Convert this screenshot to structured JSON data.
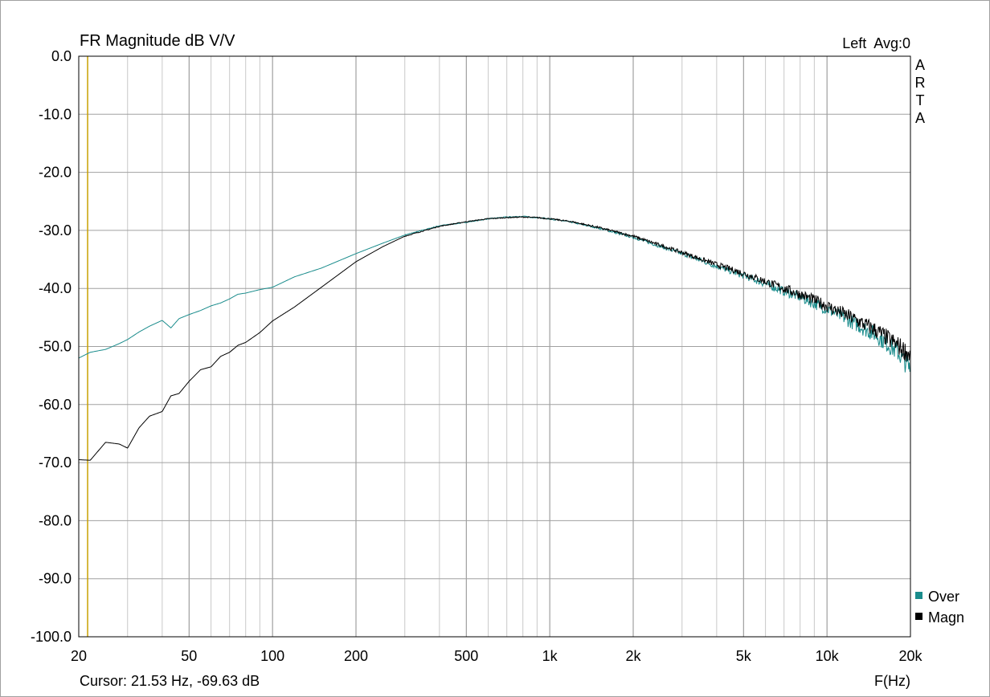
{
  "chart_data": {
    "type": "line",
    "title": "FR Magnitude dB V/V",
    "channel_info": "Left  Avg:0",
    "watermark": [
      "A",
      "R",
      "T",
      "A"
    ],
    "xlabel": "F(Hz)",
    "ylabel": "",
    "x_scale": "log",
    "xlim": [
      20,
      20000
    ],
    "ylim": [
      -100,
      0
    ],
    "x_ticks": [
      {
        "value": 20,
        "label": "20"
      },
      {
        "value": 50,
        "label": "50"
      },
      {
        "value": 100,
        "label": "100"
      },
      {
        "value": 200,
        "label": "200"
      },
      {
        "value": 500,
        "label": "500"
      },
      {
        "value": 1000,
        "label": "1k"
      },
      {
        "value": 2000,
        "label": "2k"
      },
      {
        "value": 5000,
        "label": "5k"
      },
      {
        "value": 10000,
        "label": "10k"
      },
      {
        "value": 20000,
        "label": "20k"
      }
    ],
    "y_ticks": [
      {
        "value": 0,
        "label": "0.0"
      },
      {
        "value": -10,
        "label": "-10.0"
      },
      {
        "value": -20,
        "label": "-20.0"
      },
      {
        "value": -30,
        "label": "-30.0"
      },
      {
        "value": -40,
        "label": "-40.0"
      },
      {
        "value": -50,
        "label": "-50.0"
      },
      {
        "value": -60,
        "label": "-60.0"
      },
      {
        "value": -70,
        "label": "-70.0"
      },
      {
        "value": -80,
        "label": "-80.0"
      },
      {
        "value": -90,
        "label": "-90.0"
      },
      {
        "value": -100,
        "label": "-100.0"
      }
    ],
    "grid": true,
    "legend_position": "bottom-right",
    "cursor": {
      "x": 21.53,
      "label": "Cursor: 21.53 Hz, -69.63 dB"
    },
    "series": [
      {
        "name": "Over",
        "color": "#1a8c8c",
        "x": [
          20,
          22,
          25,
          28,
          30,
          33,
          36,
          40,
          43,
          46,
          50,
          55,
          60,
          65,
          70,
          75,
          80,
          90,
          100,
          120,
          150,
          200,
          250,
          300,
          400,
          500,
          600,
          700,
          800,
          900,
          1000,
          1200,
          1500,
          2000,
          3000,
          4000,
          5000,
          6000,
          7000,
          8000,
          9000,
          10000,
          12000,
          15000,
          18000,
          20000
        ],
        "values": [
          -52,
          -51,
          -50.5,
          -49.5,
          -48.8,
          -47.5,
          -46.5,
          -45.5,
          -46.8,
          -45.2,
          -44.5,
          -43.8,
          -43,
          -42.5,
          -41.8,
          -41,
          -40.8,
          -40.2,
          -39.8,
          -38,
          -36.5,
          -34,
          -32.2,
          -30.8,
          -29.2,
          -28.6,
          -28,
          -27.7,
          -27.6,
          -27.8,
          -28,
          -28.6,
          -29.6,
          -31.2,
          -34,
          -36.2,
          -37.8,
          -39.2,
          -40.5,
          -41.5,
          -42.6,
          -43.5,
          -45.5,
          -48,
          -51,
          -54
        ]
      },
      {
        "name": "Magn",
        "color": "#000000",
        "x": [
          20,
          22,
          25,
          28,
          30,
          33,
          36,
          40,
          43,
          46,
          50,
          55,
          60,
          65,
          70,
          75,
          80,
          90,
          100,
          120,
          150,
          200,
          250,
          300,
          400,
          500,
          600,
          700,
          800,
          900,
          1000,
          1200,
          1500,
          2000,
          3000,
          4000,
          5000,
          6000,
          7000,
          8000,
          9000,
          10000,
          12000,
          15000,
          18000,
          20000
        ],
        "values": [
          -69.5,
          -69.6,
          -66.5,
          -66.8,
          -67.5,
          -64,
          -62,
          -61.2,
          -58.5,
          -58.1,
          -56,
          -54,
          -53.5,
          -51.7,
          -51,
          -49.8,
          -49.3,
          -47.6,
          -45.6,
          -43.2,
          -39.8,
          -35.4,
          -32.8,
          -31,
          -29.3,
          -28.5,
          -28,
          -27.8,
          -27.7,
          -27.8,
          -28,
          -28.5,
          -29.5,
          -31,
          -33.8,
          -35.9,
          -37.4,
          -38.8,
          -40,
          -41,
          -42,
          -43,
          -44.8,
          -47.2,
          -49.8,
          -51.5
        ]
      }
    ]
  }
}
